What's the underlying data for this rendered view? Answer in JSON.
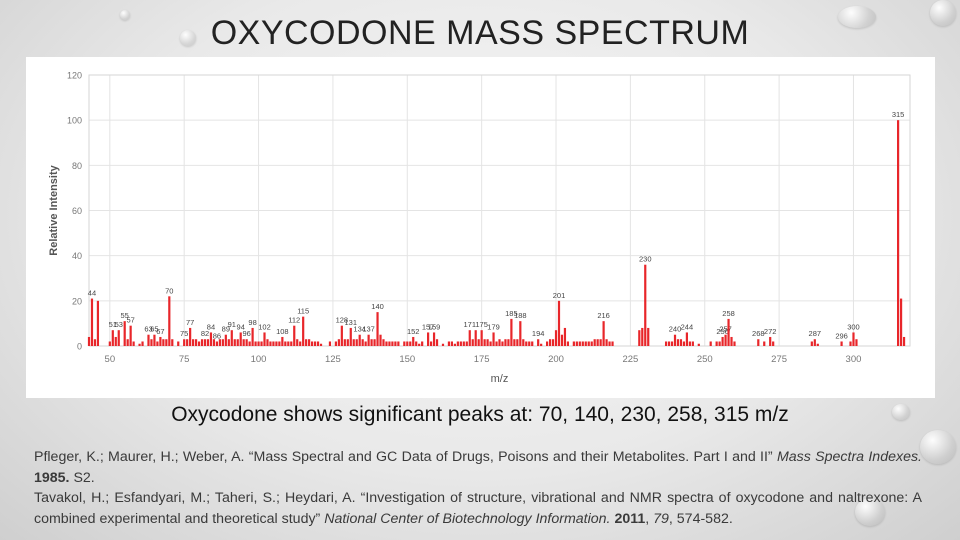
{
  "slide": {
    "title": "OXYCODONE MASS SPECTRUM",
    "caption": "Oxycodone shows significant peaks at: 70, 140, 230, 258, 315 m/z"
  },
  "references": [
    {
      "pre": "Pfleger, K.; Maurer, H.; Weber, A. “Mass Spectral and GC Data of Drugs, Poisons and their Metabolites. Part I and II” ",
      "journal": "Mass Spectra Indexes.",
      "year": "1985.",
      "post": " S2."
    },
    {
      "pre": "Tavakol, H.; Esfandyari, M.; Taheri, S.; Heydari, A. “Investigation of structure, vibrational and NMR spectra of oxycodone and naltrexone: A combined experimental and theoretical study” ",
      "journal": "National Center of Biotechnology Information.",
      "year": "2011",
      "post_pre_volume": ", ",
      "volume": "79",
      "post": ", 574-582."
    }
  ],
  "colors": {
    "bar": "#e8262a",
    "grid": "#e4e4e4",
    "axis_text": "#777777"
  },
  "chart_data": {
    "type": "bar",
    "xlabel": "m/z",
    "ylabel": "Relative Intensity",
    "xlim": [
      43,
      319
    ],
    "ylim": [
      0,
      120
    ],
    "xticks": [
      50,
      75,
      100,
      125,
      150,
      175,
      200,
      225,
      250,
      275,
      300
    ],
    "yticks": [
      0,
      20,
      40,
      60,
      80,
      100,
      120
    ],
    "grid": true,
    "peaks": [
      {
        "x": 43,
        "y": 4
      },
      {
        "x": 44,
        "y": 21,
        "label": "44"
      },
      {
        "x": 45,
        "y": 3
      },
      {
        "x": 46,
        "y": 20
      },
      {
        "x": 50,
        "y": 2
      },
      {
        "x": 51,
        "y": 7,
        "label": "51"
      },
      {
        "x": 52,
        "y": 4
      },
      {
        "x": 53,
        "y": 7,
        "label": "53"
      },
      {
        "x": 55,
        "y": 11,
        "label": "55"
      },
      {
        "x": 56,
        "y": 3
      },
      {
        "x": 57,
        "y": 9,
        "label": "57"
      },
      {
        "x": 58,
        "y": 2
      },
      {
        "x": 60,
        "y": 1
      },
      {
        "x": 61,
        "y": 2
      },
      {
        "x": 63,
        "y": 5,
        "label": "63"
      },
      {
        "x": 64,
        "y": 3
      },
      {
        "x": 65,
        "y": 5,
        "label": "65"
      },
      {
        "x": 66,
        "y": 2
      },
      {
        "x": 67,
        "y": 4,
        "label": "67"
      },
      {
        "x": 68,
        "y": 3
      },
      {
        "x": 69,
        "y": 3
      },
      {
        "x": 70,
        "y": 22,
        "label": "70"
      },
      {
        "x": 71,
        "y": 3
      },
      {
        "x": 73,
        "y": 2
      },
      {
        "x": 75,
        "y": 3,
        "label": "75"
      },
      {
        "x": 76,
        "y": 3
      },
      {
        "x": 77,
        "y": 8,
        "label": "77"
      },
      {
        "x": 78,
        "y": 3
      },
      {
        "x": 79,
        "y": 3
      },
      {
        "x": 80,
        "y": 2
      },
      {
        "x": 81,
        "y": 3
      },
      {
        "x": 82,
        "y": 3,
        "label": "82"
      },
      {
        "x": 83,
        "y": 3
      },
      {
        "x": 84,
        "y": 6,
        "label": "84"
      },
      {
        "x": 85,
        "y": 3
      },
      {
        "x": 86,
        "y": 2,
        "label": "86"
      },
      {
        "x": 87,
        "y": 3
      },
      {
        "x": 88,
        "y": 3
      },
      {
        "x": 89,
        "y": 5,
        "label": "89"
      },
      {
        "x": 90,
        "y": 3
      },
      {
        "x": 91,
        "y": 7,
        "label": "91"
      },
      {
        "x": 92,
        "y": 3
      },
      {
        "x": 93,
        "y": 3
      },
      {
        "x": 94,
        "y": 6,
        "label": "94"
      },
      {
        "x": 95,
        "y": 3
      },
      {
        "x": 96,
        "y": 3,
        "label": "96"
      },
      {
        "x": 97,
        "y": 2
      },
      {
        "x": 98,
        "y": 8,
        "label": "98"
      },
      {
        "x": 99,
        "y": 2
      },
      {
        "x": 100,
        "y": 2
      },
      {
        "x": 101,
        "y": 2
      },
      {
        "x": 102,
        "y": 6,
        "label": "102"
      },
      {
        "x": 103,
        "y": 3
      },
      {
        "x": 104,
        "y": 2
      },
      {
        "x": 105,
        "y": 2
      },
      {
        "x": 106,
        "y": 2
      },
      {
        "x": 107,
        "y": 2
      },
      {
        "x": 108,
        "y": 4,
        "label": "108"
      },
      {
        "x": 109,
        "y": 2
      },
      {
        "x": 110,
        "y": 2
      },
      {
        "x": 111,
        "y": 2
      },
      {
        "x": 112,
        "y": 9,
        "label": "112"
      },
      {
        "x": 113,
        "y": 3
      },
      {
        "x": 114,
        "y": 2
      },
      {
        "x": 115,
        "y": 13,
        "label": "115"
      },
      {
        "x": 116,
        "y": 3
      },
      {
        "x": 117,
        "y": 3
      },
      {
        "x": 118,
        "y": 2
      },
      {
        "x": 119,
        "y": 2
      },
      {
        "x": 120,
        "y": 2
      },
      {
        "x": 121,
        "y": 1
      },
      {
        "x": 124,
        "y": 2
      },
      {
        "x": 126,
        "y": 2
      },
      {
        "x": 127,
        "y": 3
      },
      {
        "x": 128,
        "y": 9,
        "label": "128"
      },
      {
        "x": 129,
        "y": 3
      },
      {
        "x": 130,
        "y": 3
      },
      {
        "x": 131,
        "y": 8,
        "label": "131"
      },
      {
        "x": 132,
        "y": 3
      },
      {
        "x": 133,
        "y": 3
      },
      {
        "x": 134,
        "y": 5,
        "label": "134"
      },
      {
        "x": 135,
        "y": 3
      },
      {
        "x": 136,
        "y": 2
      },
      {
        "x": 137,
        "y": 5,
        "label": "137"
      },
      {
        "x": 138,
        "y": 3
      },
      {
        "x": 139,
        "y": 3
      },
      {
        "x": 140,
        "y": 15,
        "label": "140"
      },
      {
        "x": 141,
        "y": 5
      },
      {
        "x": 142,
        "y": 3
      },
      {
        "x": 143,
        "y": 2
      },
      {
        "x": 144,
        "y": 2
      },
      {
        "x": 145,
        "y": 2
      },
      {
        "x": 146,
        "y": 2
      },
      {
        "x": 147,
        "y": 2
      },
      {
        "x": 149,
        "y": 2
      },
      {
        "x": 150,
        "y": 2
      },
      {
        "x": 151,
        "y": 2
      },
      {
        "x": 152,
        "y": 4,
        "label": "152"
      },
      {
        "x": 153,
        "y": 2
      },
      {
        "x": 154,
        "y": 1
      },
      {
        "x": 155,
        "y": 2
      },
      {
        "x": 157,
        "y": 6,
        "label": "157"
      },
      {
        "x": 158,
        "y": 2
      },
      {
        "x": 159,
        "y": 6,
        "label": "159"
      },
      {
        "x": 160,
        "y": 3
      },
      {
        "x": 162,
        "y": 1
      },
      {
        "x": 164,
        "y": 2
      },
      {
        "x": 165,
        "y": 2
      },
      {
        "x": 166,
        "y": 1
      },
      {
        "x": 167,
        "y": 2
      },
      {
        "x": 168,
        "y": 2
      },
      {
        "x": 169,
        "y": 2
      },
      {
        "x": 170,
        "y": 2
      },
      {
        "x": 171,
        "y": 7,
        "label": "171"
      },
      {
        "x": 172,
        "y": 3
      },
      {
        "x": 173,
        "y": 7
      },
      {
        "x": 174,
        "y": 3
      },
      {
        "x": 175,
        "y": 7,
        "label": "175"
      },
      {
        "x": 176,
        "y": 3
      },
      {
        "x": 177,
        "y": 3
      },
      {
        "x": 178,
        "y": 2
      },
      {
        "x": 179,
        "y": 6,
        "label": "179"
      },
      {
        "x": 180,
        "y": 2
      },
      {
        "x": 181,
        "y": 3
      },
      {
        "x": 182,
        "y": 2
      },
      {
        "x": 183,
        "y": 3
      },
      {
        "x": 184,
        "y": 3
      },
      {
        "x": 185,
        "y": 12,
        "label": "185"
      },
      {
        "x": 186,
        "y": 3
      },
      {
        "x": 187,
        "y": 3
      },
      {
        "x": 188,
        "y": 11,
        "label": "188"
      },
      {
        "x": 189,
        "y": 3
      },
      {
        "x": 190,
        "y": 2
      },
      {
        "x": 191,
        "y": 2
      },
      {
        "x": 192,
        "y": 2
      },
      {
        "x": 194,
        "y": 3,
        "label": "194"
      },
      {
        "x": 195,
        "y": 1
      },
      {
        "x": 197,
        "y": 2
      },
      {
        "x": 198,
        "y": 3
      },
      {
        "x": 199,
        "y": 3
      },
      {
        "x": 200,
        "y": 7
      },
      {
        "x": 201,
        "y": 20,
        "label": "201"
      },
      {
        "x": 202,
        "y": 5
      },
      {
        "x": 203,
        "y": 8
      },
      {
        "x": 204,
        "y": 2
      },
      {
        "x": 206,
        "y": 2
      },
      {
        "x": 207,
        "y": 2
      },
      {
        "x": 208,
        "y": 2
      },
      {
        "x": 209,
        "y": 2
      },
      {
        "x": 210,
        "y": 2
      },
      {
        "x": 211,
        "y": 2
      },
      {
        "x": 212,
        "y": 2
      },
      {
        "x": 213,
        "y": 3
      },
      {
        "x": 214,
        "y": 3
      },
      {
        "x": 215,
        "y": 3
      },
      {
        "x": 216,
        "y": 11,
        "label": "216"
      },
      {
        "x": 217,
        "y": 3
      },
      {
        "x": 218,
        "y": 2
      },
      {
        "x": 219,
        "y": 2
      },
      {
        "x": 228,
        "y": 7
      },
      {
        "x": 229,
        "y": 8
      },
      {
        "x": 230,
        "y": 36,
        "label": "230"
      },
      {
        "x": 231,
        "y": 8
      },
      {
        "x": 237,
        "y": 2
      },
      {
        "x": 238,
        "y": 2
      },
      {
        "x": 239,
        "y": 2
      },
      {
        "x": 240,
        "y": 5,
        "label": "240"
      },
      {
        "x": 241,
        "y": 3
      },
      {
        "x": 242,
        "y": 3
      },
      {
        "x": 243,
        "y": 2
      },
      {
        "x": 244,
        "y": 6,
        "label": "244"
      },
      {
        "x": 245,
        "y": 2
      },
      {
        "x": 246,
        "y": 2
      },
      {
        "x": 248,
        "y": 1
      },
      {
        "x": 252,
        "y": 2
      },
      {
        "x": 254,
        "y": 2
      },
      {
        "x": 255,
        "y": 2
      },
      {
        "x": 256,
        "y": 4,
        "label": "256"
      },
      {
        "x": 257,
        "y": 5,
        "label": "257"
      },
      {
        "x": 258,
        "y": 12,
        "label": "258"
      },
      {
        "x": 259,
        "y": 4
      },
      {
        "x": 260,
        "y": 2
      },
      {
        "x": 268,
        "y": 3,
        "label": "268"
      },
      {
        "x": 270,
        "y": 2
      },
      {
        "x": 272,
        "y": 4,
        "label": "272"
      },
      {
        "x": 273,
        "y": 2
      },
      {
        "x": 286,
        "y": 2
      },
      {
        "x": 287,
        "y": 3,
        "label": "287"
      },
      {
        "x": 288,
        "y": 1
      },
      {
        "x": 296,
        "y": 2,
        "label": "296"
      },
      {
        "x": 299,
        "y": 2
      },
      {
        "x": 300,
        "y": 6,
        "label": "300"
      },
      {
        "x": 301,
        "y": 3
      },
      {
        "x": 315,
        "y": 100,
        "label": "315"
      },
      {
        "x": 316,
        "y": 21
      },
      {
        "x": 317,
        "y": 4
      }
    ]
  }
}
